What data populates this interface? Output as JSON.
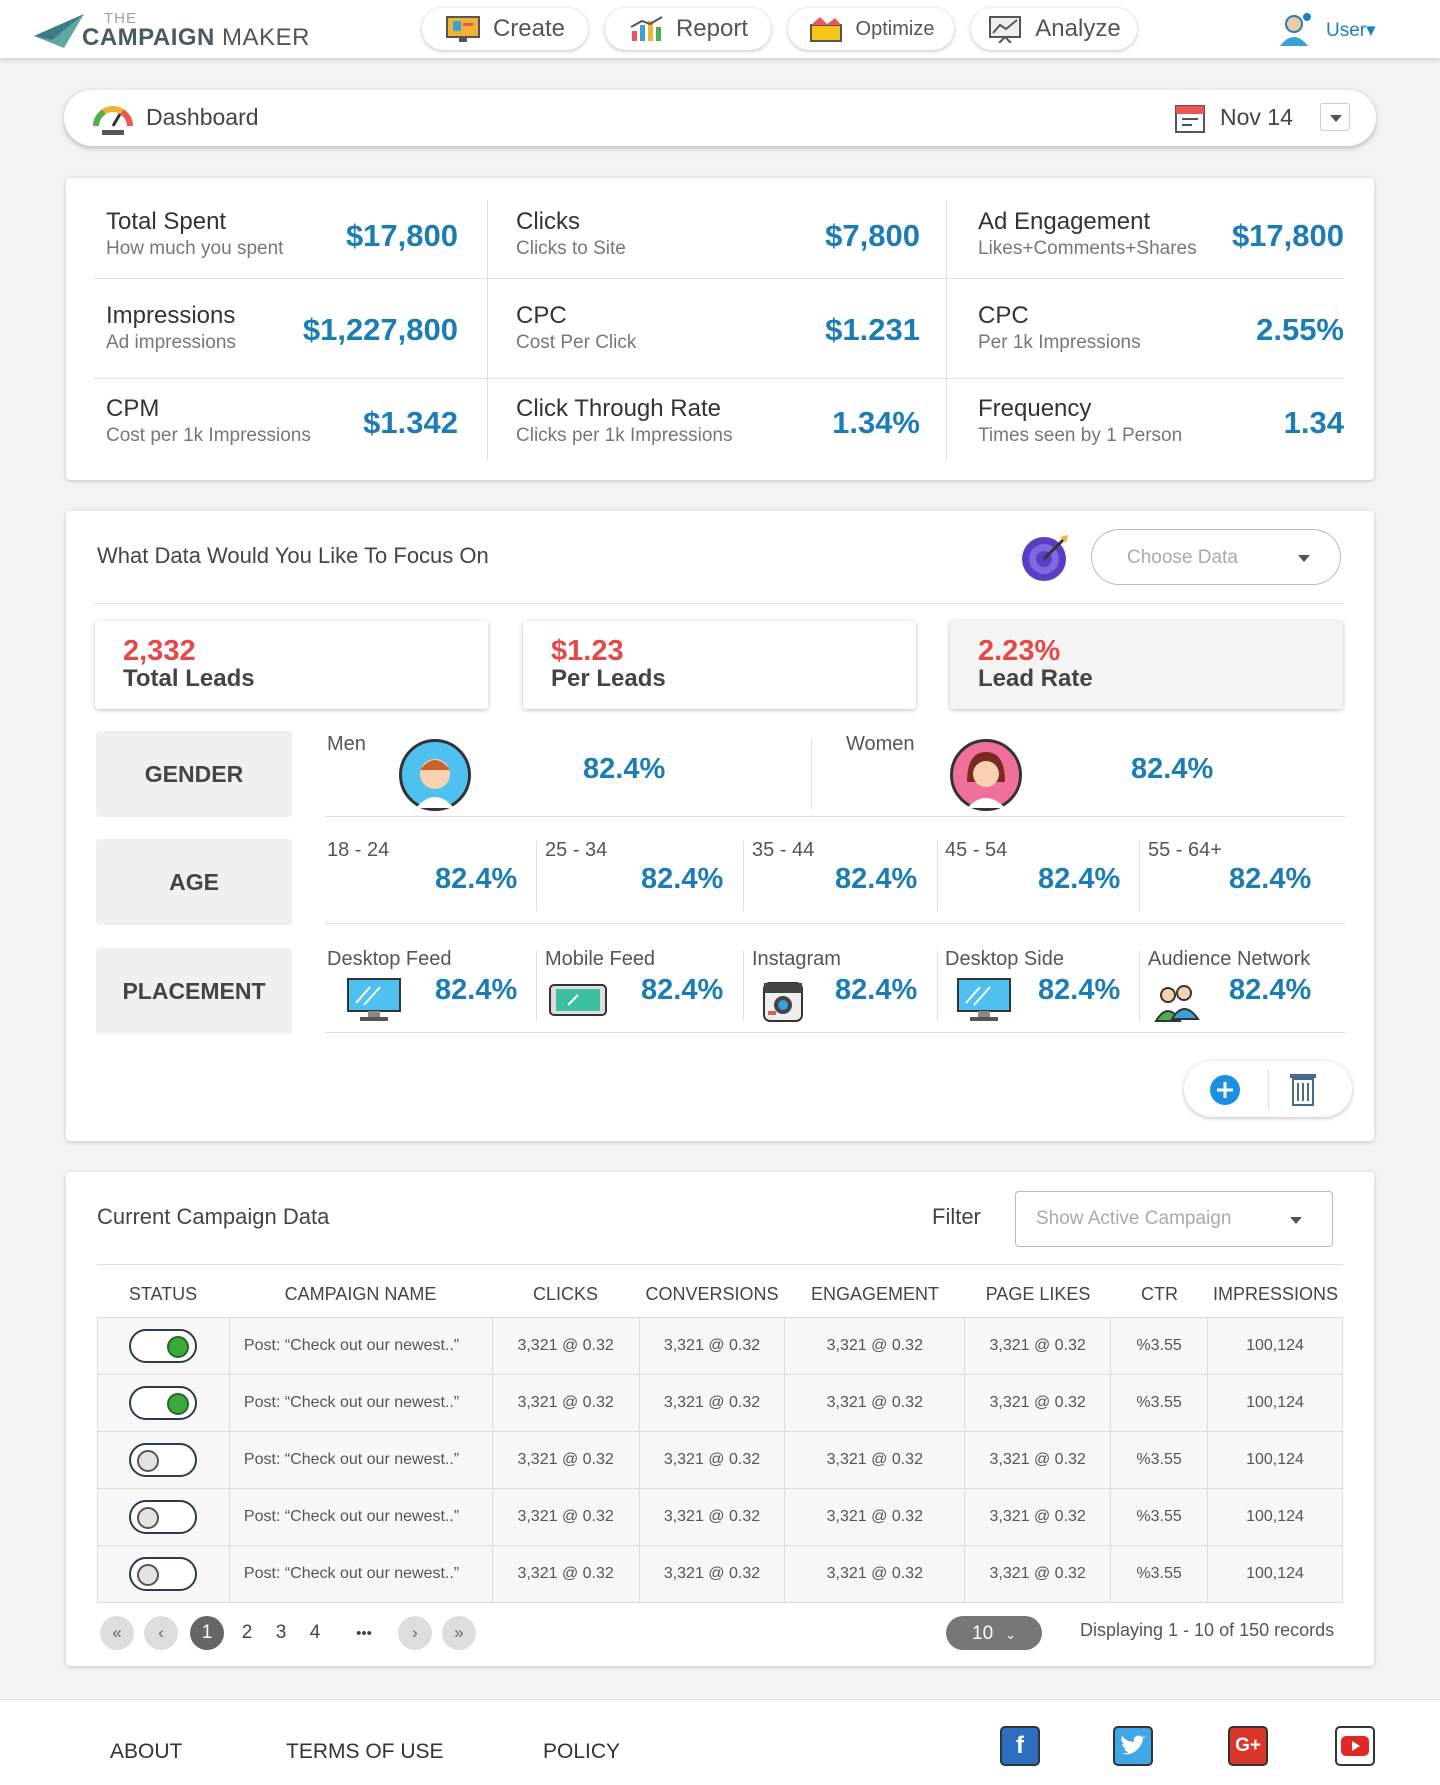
{
  "brand": {
    "the": "THE",
    "name1": "CAMPAIGN",
    "name2": " MAKER"
  },
  "nav": [
    {
      "label": "Create",
      "icon": "create-icon"
    },
    {
      "label": "Report",
      "icon": "report-icon"
    },
    {
      "label": "Optimize",
      "icon": "optimize-icon"
    },
    {
      "label": "Analyze",
      "icon": "analyze-icon"
    }
  ],
  "user": {
    "label": "User▾"
  },
  "dashboard": {
    "title": "Dashboard",
    "date": "Nov 14"
  },
  "stats": [
    {
      "label": "Total Spent",
      "sub": "How much you spent",
      "value": "$17,800"
    },
    {
      "label": "Clicks",
      "sub": "Clicks to Site",
      "value": "$7,800"
    },
    {
      "label": "Ad Engagement",
      "sub": "Likes+Comments+Shares",
      "value": "$17,800"
    },
    {
      "label": "Impressions",
      "sub": "Ad impressions",
      "value": "$1,227,800"
    },
    {
      "label": "CPC",
      "sub": "Cost Per Click",
      "value": "$1.231"
    },
    {
      "label": "CPC",
      "sub": "Per 1k Impressions",
      "value": "2.55%"
    },
    {
      "label": "CPM",
      "sub": "Cost per 1k Impressions",
      "value": "$1.342"
    },
    {
      "label": "Click Through Rate",
      "sub": "Clicks per 1k Impressions",
      "value": "1.34%"
    },
    {
      "label": "Frequency",
      "sub": "Times seen by 1 Person",
      "value": "1.34"
    }
  ],
  "focus": {
    "title": "What Data Would You Like To Focus On",
    "choose_placeholder": "Choose Data",
    "kpis": [
      {
        "num": "2,332",
        "label": "Total Leads"
      },
      {
        "num": "$1.23",
        "label": "Per Leads"
      },
      {
        "num": "2.23%",
        "label": "Lead Rate"
      }
    ],
    "segments": {
      "gender": "GENDER",
      "age": "AGE",
      "placement": "PLACEMENT"
    },
    "gender": [
      {
        "label": "Men",
        "value": "82.4%"
      },
      {
        "label": "Women",
        "value": "82.4%"
      }
    ],
    "age": [
      {
        "label": "18 - 24",
        "value": "82.4%"
      },
      {
        "label": "25 - 34",
        "value": "82.4%"
      },
      {
        "label": "35 - 44",
        "value": "82.4%"
      },
      {
        "label": "45 - 54",
        "value": "82.4%"
      },
      {
        "label": "55 - 64+",
        "value": "82.4%"
      }
    ],
    "placement": [
      {
        "label": "Desktop Feed",
        "value": "82.4%"
      },
      {
        "label": "Mobile Feed",
        "value": "82.4%"
      },
      {
        "label": "Instagram",
        "value": "82.4%"
      },
      {
        "label": "Desktop Side",
        "value": "82.4%"
      },
      {
        "label": "Audience Network",
        "value": "82.4%"
      }
    ]
  },
  "campaign": {
    "title": "Current Campaign Data",
    "filter_label": "Filter",
    "filter_placeholder": "Show Active Campaign",
    "columns": [
      "STATUS",
      "CAMPAIGN NAME",
      "CLICKS",
      "CONVERSIONS",
      "ENGAGEMENT",
      "PAGE LIKES",
      "CTR",
      "IMPRESSIONS"
    ],
    "rows": [
      {
        "active": true,
        "name": "Post: “Check out our newest..”",
        "clicks": "3,321 @ 0.32",
        "conversions": "3,321 @ 0.32",
        "engagement": "3,321 @ 0.32",
        "likes": "3,321 @ 0.32",
        "ctr": "%3.55",
        "impressions": "100,124"
      },
      {
        "active": true,
        "name": "Post: “Check out our newest..”",
        "clicks": "3,321 @ 0.32",
        "conversions": "3,321 @ 0.32",
        "engagement": "3,321 @ 0.32",
        "likes": "3,321 @ 0.32",
        "ctr": "%3.55",
        "impressions": "100,124"
      },
      {
        "active": false,
        "name": "Post: “Check out our newest..”",
        "clicks": "3,321 @ 0.32",
        "conversions": "3,321 @ 0.32",
        "engagement": "3,321 @ 0.32",
        "likes": "3,321 @ 0.32",
        "ctr": "%3.55",
        "impressions": "100,124"
      },
      {
        "active": false,
        "name": "Post: “Check out our newest..”",
        "clicks": "3,321 @ 0.32",
        "conversions": "3,321 @ 0.32",
        "engagement": "3,321 @ 0.32",
        "likes": "3,321 @ 0.32",
        "ctr": "%3.55",
        "impressions": "100,124"
      },
      {
        "active": false,
        "name": "Post: “Check out our newest..”",
        "clicks": "3,321 @ 0.32",
        "conversions": "3,321 @ 0.32",
        "engagement": "3,321 @ 0.32",
        "likes": "3,321 @ 0.32",
        "ctr": "%3.55",
        "impressions": "100,124"
      }
    ],
    "pagination": {
      "first": "«",
      "prev": "‹",
      "pages": [
        "1",
        "2",
        "3",
        "4"
      ],
      "ellipsis": "•••",
      "next": "›",
      "last": "»",
      "per_page": "10",
      "display": "Displaying 1 - 10 of 150 records"
    }
  },
  "footer": {
    "links": [
      "ABOUT",
      "TERMS OF USE",
      "POLICY"
    ],
    "social": [
      {
        "icon": "facebook-icon",
        "glyph": "f",
        "color": "#2d6fc1"
      },
      {
        "icon": "twitter-icon",
        "glyph": "",
        "color": "#41a6e6"
      },
      {
        "icon": "google-plus-icon",
        "glyph": "G+",
        "color": "#d9362b"
      },
      {
        "icon": "youtube-icon",
        "glyph": "",
        "color": "#2b6fb8"
      }
    ]
  }
}
